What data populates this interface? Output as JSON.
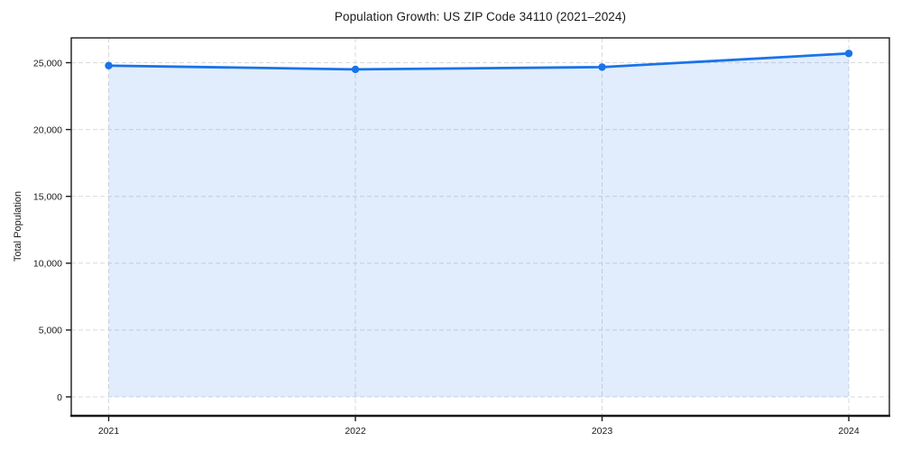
{
  "chart_data": {
    "type": "area",
    "title": "Population Growth: US ZIP Code 34110 (2021–2024)",
    "xlabel": "",
    "ylabel": "Total Population",
    "x": [
      "2021",
      "2022",
      "2023",
      "2024"
    ],
    "series": [
      {
        "name": "Total Population",
        "values": [
          24780,
          24500,
          24670,
          25690
        ]
      }
    ],
    "yticks": [
      0,
      5000,
      10000,
      15000,
      20000,
      25000
    ],
    "ytick_labels": [
      "0",
      "5,000",
      "10,000",
      "15,000",
      "20,000",
      "25,000"
    ],
    "ylim": [
      -1400,
      26850
    ],
    "grid": true,
    "grid_style": "dashed",
    "legend_position": "none",
    "colors": {
      "line": "#1a73e8",
      "marker": "#1a73e8",
      "fill": "rgba(26,115,232,0.13)",
      "grid": "#d9d9d9",
      "spine": "#1a1a1a",
      "text": "#1a1a1a"
    }
  }
}
